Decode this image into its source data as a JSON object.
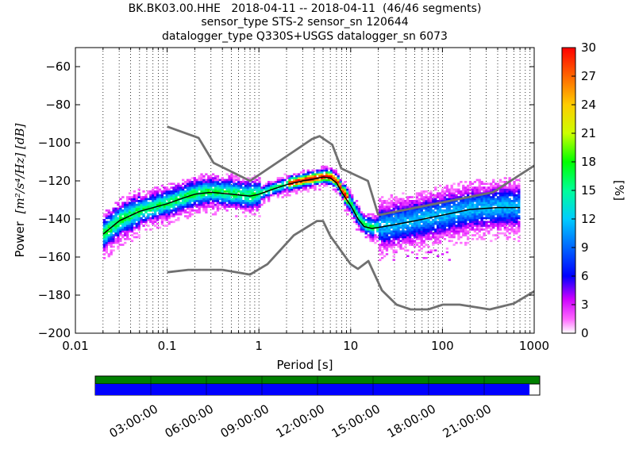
{
  "title_lines": [
    "BK.BK03.00.HHE   2018-04-11 -- 2018-04-11  (46/46 segments)",
    "sensor_type STS-2 sensor_sn 120644",
    "datalogger_type Q330S+USGS datalogger_sn 6073"
  ],
  "chart_data": {
    "type": "heatmap",
    "xlabel": "Period [s]",
    "ylabel_prefix": "Power",
    "ylabel_units": "[m²/s⁴/Hz] [dB]",
    "x_scale": "log",
    "xlim": [
      0.01,
      1000
    ],
    "ylim": [
      -200,
      -50
    ],
    "x_ticks": [
      0.01,
      0.1,
      1,
      10,
      100,
      1000
    ],
    "x_tick_labels": [
      "0.01",
      "0.1",
      "1",
      "10",
      "100",
      "1000"
    ],
    "y_ticks": [
      -200,
      -180,
      -160,
      -140,
      -120,
      -100,
      -80,
      -60
    ],
    "y_tick_labels": [
      "−200",
      "−180",
      "−160",
      "−140",
      "−120",
      "−100",
      "−80",
      "−60"
    ],
    "grid": "dotted vertical at log minor ticks",
    "colorbar": {
      "label": "[%]",
      "range": [
        0,
        30
      ],
      "ticks": [
        0,
        3,
        6,
        9,
        12,
        15,
        18,
        21,
        24,
        27,
        30
      ],
      "colormap": "pqlx (white-magenta-blue-cyan-green-yellow-red)"
    },
    "noise_models": [
      {
        "name": "NHNM",
        "color": "#707070",
        "periods": [
          0.1,
          0.22,
          0.32,
          0.8,
          3.8,
          4.6,
          6.3,
          7.9,
          15.4,
          20
        ],
        "power": [
          -91.5,
          -97.4,
          -110.5,
          -120.0,
          -98.0,
          -96.5,
          -101.0,
          -113.5,
          -120.0,
          -138.0
        ]
      },
      {
        "name": "NHNM-long",
        "color": "#707070",
        "periods": [
          20,
          354.8,
          1000
        ],
        "power": [
          -138.0,
          -126.0,
          -112.0
        ]
      },
      {
        "name": "NLNM",
        "color": "#707070",
        "periods": [
          0.1,
          0.17,
          0.4,
          0.8,
          1.24,
          2.4,
          4.3,
          5.0,
          6.0,
          10.0,
          12.0,
          15.6,
          21.9,
          31.6,
          45.0,
          70.0,
          101.0,
          154.0,
          328.0,
          600.0,
          1000.0
        ],
        "power": [
          -168.0,
          -166.7,
          -166.7,
          -169.2,
          -163.7,
          -148.6,
          -141.1,
          -141.1,
          -149.0,
          -163.8,
          -166.2,
          -162.1,
          -177.5,
          -185.0,
          -187.5,
          -187.5,
          -185.0,
          -185.0,
          -187.5,
          -184.4,
          -178.0
        ]
      }
    ],
    "median_psd": {
      "color": "#000000",
      "periods": [
        0.02,
        0.03,
        0.05,
        0.1,
        0.15,
        0.2,
        0.3,
        0.5,
        0.8,
        1.0,
        1.5,
        2.0,
        3.0,
        4.0,
        5.0,
        6.0,
        7.0,
        8.0,
        10.0,
        12.0,
        14.0,
        17.0,
        20.0,
        30.0,
        50.0,
        100.0,
        200.0,
        400.0,
        700.0
      ],
      "power": [
        -148.0,
        -141.0,
        -136.0,
        -132.0,
        -129.0,
        -127.0,
        -126.0,
        -127.0,
        -128.0,
        -127.0,
        -124.0,
        -122.0,
        -120.0,
        -119.0,
        -118.0,
        -118.5,
        -121.0,
        -126.0,
        -133.0,
        -140.0,
        -144.0,
        -145.0,
        -144.5,
        -143.0,
        -141.0,
        -138.0,
        -135.0,
        -134.0,
        -134.0
      ]
    }
  },
  "time_axis": {
    "tick_labels": [
      "03:00:00",
      "06:00:00",
      "09:00:00",
      "12:00:00",
      "15:00:00",
      "18:00:00",
      "21:00:00"
    ],
    "tick_hours": [
      3,
      6,
      9,
      12,
      15,
      18,
      21
    ],
    "span_hours": [
      0,
      24
    ],
    "coverage_fraction": 0.977,
    "data_bar_color": "#0000ff",
    "gap_bar_color": "#008000"
  }
}
